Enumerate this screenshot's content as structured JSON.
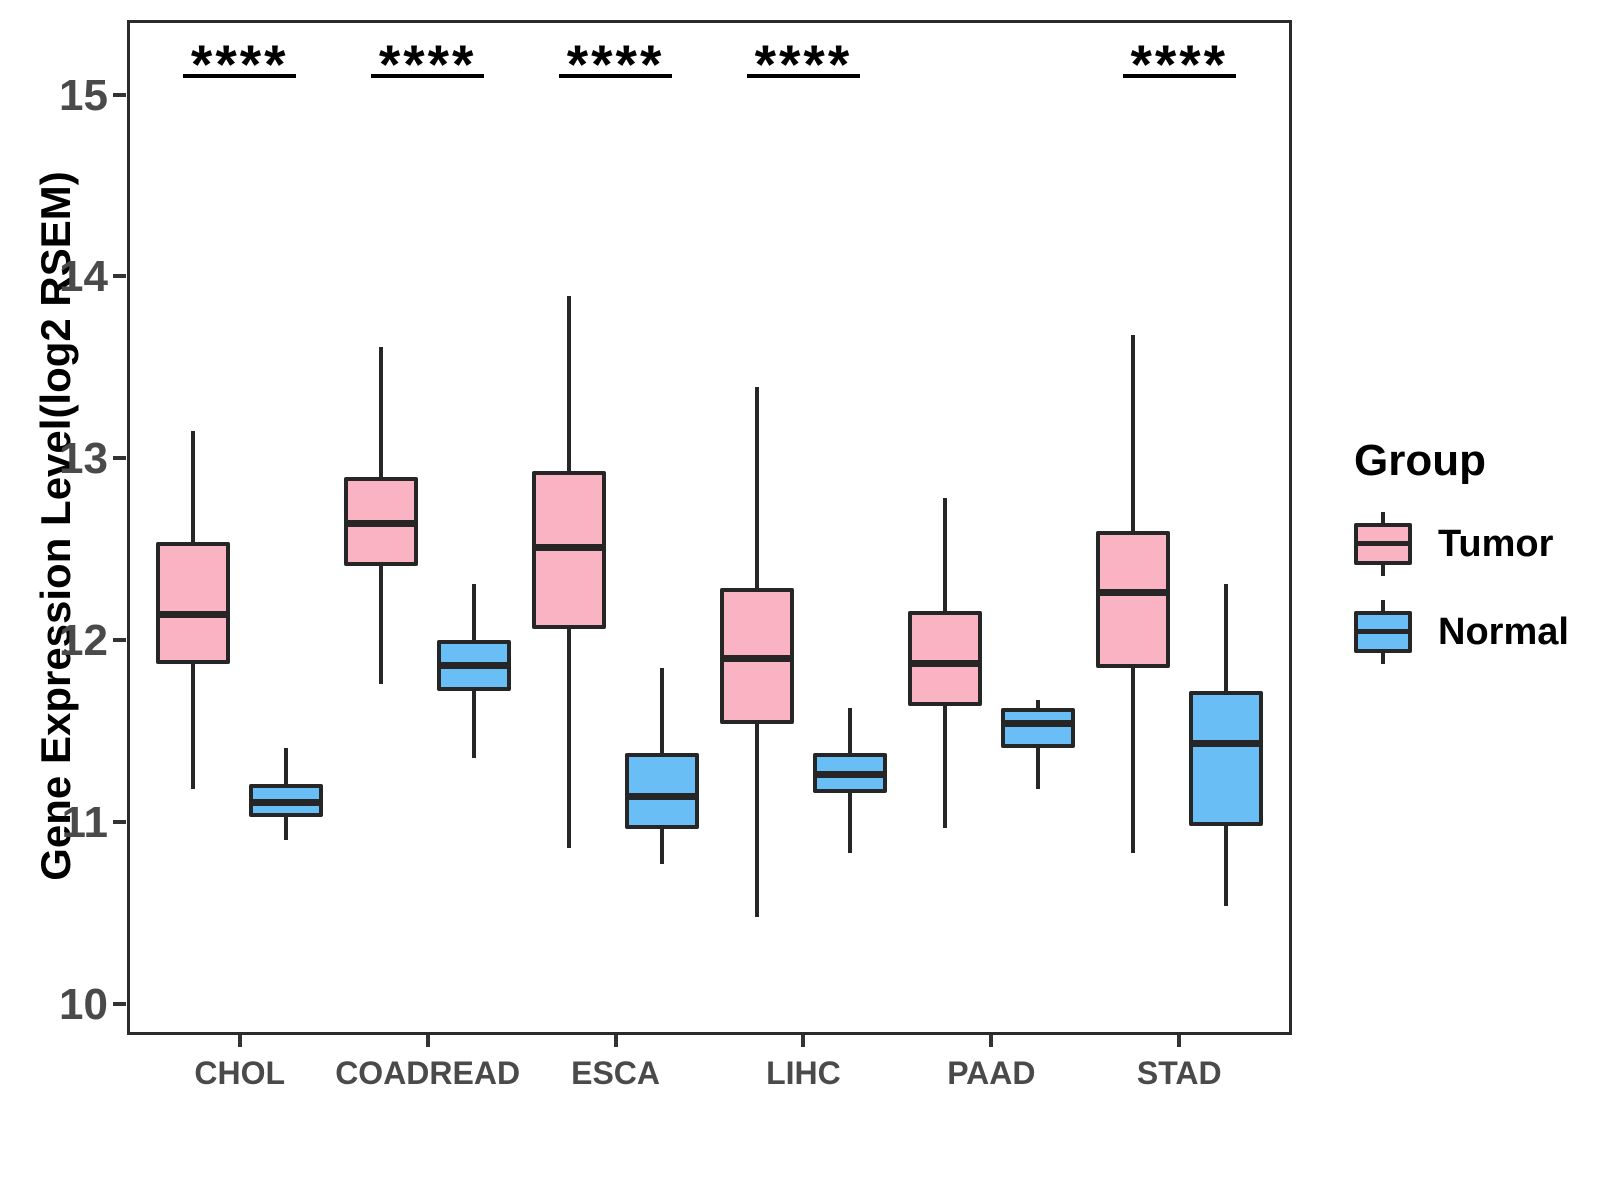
{
  "chart_data": {
    "type": "boxplot",
    "title": "",
    "xlabel": "",
    "ylabel": "Gene Expression Level(log2 RSEM)",
    "ylim": [
      9.83,
      15.41
    ],
    "yticks": [
      10,
      11,
      12,
      13,
      14,
      15
    ],
    "categories": [
      "CHOL",
      "COADREAD",
      "ESCA",
      "LIHC",
      "PAAD",
      "STAD"
    ],
    "grid": "off",
    "legend": {
      "title": "Group",
      "position": "right",
      "items": [
        {
          "label": "Tumor",
          "color": "#F9B3C2"
        },
        {
          "label": "Normal",
          "color": "#69BEF5"
        }
      ]
    },
    "significance": [
      {
        "category": "CHOL",
        "label": "****"
      },
      {
        "category": "COADREAD",
        "label": "****"
      },
      {
        "category": "ESCA",
        "label": "****"
      },
      {
        "category": "LIHC",
        "label": "****"
      },
      {
        "category": "STAD",
        "label": "****"
      }
    ],
    "series": [
      {
        "name": "Tumor",
        "color": "#F9B3C2",
        "boxes": [
          {
            "category": "CHOL",
            "whisker_low": 11.18,
            "q1": 11.87,
            "median": 12.14,
            "q3": 12.54,
            "whisker_high": 13.15
          },
          {
            "category": "COADREAD",
            "whisker_low": 11.76,
            "q1": 12.41,
            "median": 12.64,
            "q3": 12.9,
            "whisker_high": 13.61
          },
          {
            "category": "ESCA",
            "whisker_low": 10.86,
            "q1": 12.06,
            "median": 12.51,
            "q3": 12.93,
            "whisker_high": 13.89
          },
          {
            "category": "LIHC",
            "whisker_low": 10.48,
            "q1": 11.54,
            "median": 11.9,
            "q3": 12.29,
            "whisker_high": 13.39
          },
          {
            "category": "PAAD",
            "whisker_low": 10.97,
            "q1": 11.64,
            "median": 11.87,
            "q3": 12.16,
            "whisker_high": 12.78
          },
          {
            "category": "STAD",
            "whisker_low": 10.83,
            "q1": 11.85,
            "median": 12.26,
            "q3": 12.6,
            "whisker_high": 13.68
          }
        ]
      },
      {
        "name": "Normal",
        "color": "#69BEF5",
        "boxes": [
          {
            "category": "CHOL",
            "whisker_low": 10.9,
            "q1": 11.03,
            "median": 11.11,
            "q3": 11.21,
            "whisker_high": 11.41
          },
          {
            "category": "COADREAD",
            "whisker_low": 11.35,
            "q1": 11.72,
            "median": 11.86,
            "q3": 12.0,
            "whisker_high": 12.31
          },
          {
            "category": "ESCA",
            "whisker_low": 10.77,
            "q1": 10.96,
            "median": 11.14,
            "q3": 11.38,
            "whisker_high": 11.85
          },
          {
            "category": "LIHC",
            "whisker_low": 10.83,
            "q1": 11.16,
            "median": 11.26,
            "q3": 11.38,
            "whisker_high": 11.63
          },
          {
            "category": "PAAD",
            "whisker_low": 11.18,
            "q1": 11.41,
            "median": 11.54,
            "q3": 11.63,
            "whisker_high": 11.67
          },
          {
            "category": "STAD",
            "whisker_low": 10.54,
            "q1": 10.98,
            "median": 11.43,
            "q3": 11.72,
            "whisker_high": 12.31
          }
        ]
      }
    ]
  }
}
